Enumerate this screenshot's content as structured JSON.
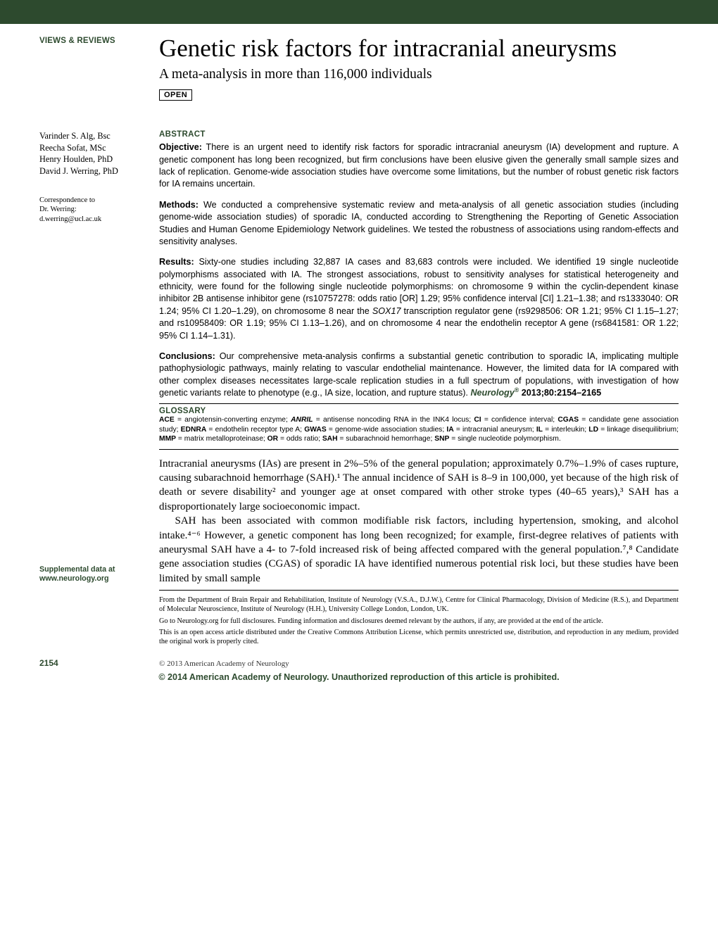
{
  "section_label": "VIEWS & REVIEWS",
  "title": "Genetic risk factors for intracranial aneurysms",
  "subtitle": "A meta-analysis in more than 116,000 individuals",
  "open_badge": "OPEN",
  "authors": [
    "Varinder S. Alg, Bsc",
    "Reecha Sofat, MSc",
    "Henry Houlden, PhD",
    "David J. Werring, PhD"
  ],
  "correspondence": {
    "label": "Correspondence to",
    "to": "Dr. Werring:",
    "email": "d.werring@ucl.ac.uk"
  },
  "abstract_head": "ABSTRACT",
  "objective_label": "Objective:",
  "objective_text": " There is an urgent need to identify risk factors for sporadic intracranial aneurysm (IA) development and rupture. A genetic component has long been recognized, but firm conclusions have been elusive given the generally small sample sizes and lack of replication. Genome-wide association studies have overcome some limitations, but the number of robust genetic risk factors for IA remains uncertain.",
  "methods_label": "Methods:",
  "methods_text": " We conducted a comprehensive systematic review and meta-analysis of all genetic association studies (including genome-wide association studies) of sporadic IA, conducted according to Strengthening the Reporting of Genetic Association Studies and Human Genome Epidemiology Network guidelines. We tested the robustness of associations using random-effects and sensitivity analyses.",
  "results_label": "Results:",
  "results_text_1": " Sixty-one studies including 32,887 IA cases and 83,683 controls were included. We identified 19 single nucleotide polymorphisms associated with IA. The strongest associations, robust to sensitivity analyses for statistical heterogeneity and ethnicity, were found for the following single nucleotide polymorphisms: on chromosome 9 within the cyclin-dependent kinase inhibitor 2B antisense inhibitor gene (rs10757278: odds ratio [OR] 1.29; 95% confidence interval [CI] 1.21–1.38; and rs1333040: OR 1.24; 95% CI 1.20–1.29), on chromosome 8 near the ",
  "results_text_gene": "SOX17",
  "results_text_2": " transcription regulator gene (rs9298506: OR 1.21; 95% CI 1.15–1.27; and rs10958409: OR 1.19; 95% CI 1.13–1.26), and on chromosome 4 near the endothelin receptor A gene (rs6841581: OR 1.22; 95% CI 1.14–1.31).",
  "conclusions_label": "Conclusions:",
  "conclusions_text": " Our comprehensive meta-analysis confirms a substantial genetic contribution to sporadic IA, implicating multiple pathophysiologic pathways, mainly relating to vascular endothelial maintenance. However, the limited data for IA compared with other complex diseases necessitates large-scale replication studies in a full spectrum of populations, with investigation of how genetic variants relate to phenotype (e.g., IA size, location, and rupture status). ",
  "citation_journal": "Neurology",
  "citation_reg": "®",
  "citation_rest": " 2013;80:2154–2165",
  "glossary_head": "GLOSSARY",
  "glossary_items": [
    {
      "abbr": "ACE",
      "def": "angiotensin-converting enzyme"
    },
    {
      "abbr": "ANRIL",
      "def": "antisense noncoding RNA in the INK4 locus",
      "italic": true
    },
    {
      "abbr": "CI",
      "def": "confidence interval"
    },
    {
      "abbr": "CGAS",
      "def": "candidate gene association study"
    },
    {
      "abbr": "EDNRA",
      "def": "endothelin receptor type A"
    },
    {
      "abbr": "GWAS",
      "def": "genome-wide association studies"
    },
    {
      "abbr": "IA",
      "def": "intracranial aneurysm"
    },
    {
      "abbr": "IL",
      "def": "interleukin"
    },
    {
      "abbr": "LD",
      "def": "linkage disequilibrium"
    },
    {
      "abbr": "MMP",
      "def": "matrix metalloproteinase"
    },
    {
      "abbr": "OR",
      "def": "odds ratio"
    },
    {
      "abbr": "SAH",
      "def": "subarachnoid hemorrhage"
    },
    {
      "abbr": "SNP",
      "def": "single nucleotide polymorphism"
    }
  ],
  "intro_p1": "Intracranial aneurysms (IAs) are present in 2%–5% of the general population; approximately 0.7%–1.9% of cases rupture, causing subarachnoid hemorrhage (SAH).¹ The annual incidence of SAH is 8–9 in 100,000, yet because of the high risk of death or severe disability² and younger age at onset compared with other stroke types (40–65 years),³ SAH has a disproportionately large socioeconomic impact.",
  "intro_p2": "SAH has been associated with common modifiable risk factors, including hypertension, smoking, and alcohol intake.⁴⁻⁶ However, a genetic component has long been recognized; for example, first-degree relatives of patients with aneurysmal SAH have a 4- to 7-fold increased risk of being affected compared with the general population.⁷,⁸ Candidate gene association studies (CGAS) of sporadic IA have identified numerous potential risk loci, but these studies have been limited by small sample",
  "supp_label": "Supplemental data at",
  "supp_url": "www.neurology.org",
  "affil_1": "From the Department of Brain Repair and Rehabilitation, Institute of Neurology (V.S.A., D.J.W.), Centre for Clinical Pharmacology, Division of Medicine (R.S.), and Department of Molecular Neuroscience, Institute of Neurology (H.H.), University College London, London, UK.",
  "affil_2": "Go to Neurology.org for full disclosures. Funding information and disclosures deemed relevant by the authors, if any, are provided at the end of the article.",
  "affil_3": "This is an open access article distributed under the Creative Commons Attribution License, which permits unrestricted use, distribution, and reproduction in any medium, provided the original work is properly cited.",
  "page_number": "2154",
  "footer_copyright": "© 2013 American Academy of Neurology",
  "bottom_banner": "© 2014 American Academy of Neurology. Unauthorized reproduction of this article is prohibited.",
  "colors": {
    "brand_green": "#2d4a2e",
    "text": "#000000",
    "background": "#ffffff"
  }
}
